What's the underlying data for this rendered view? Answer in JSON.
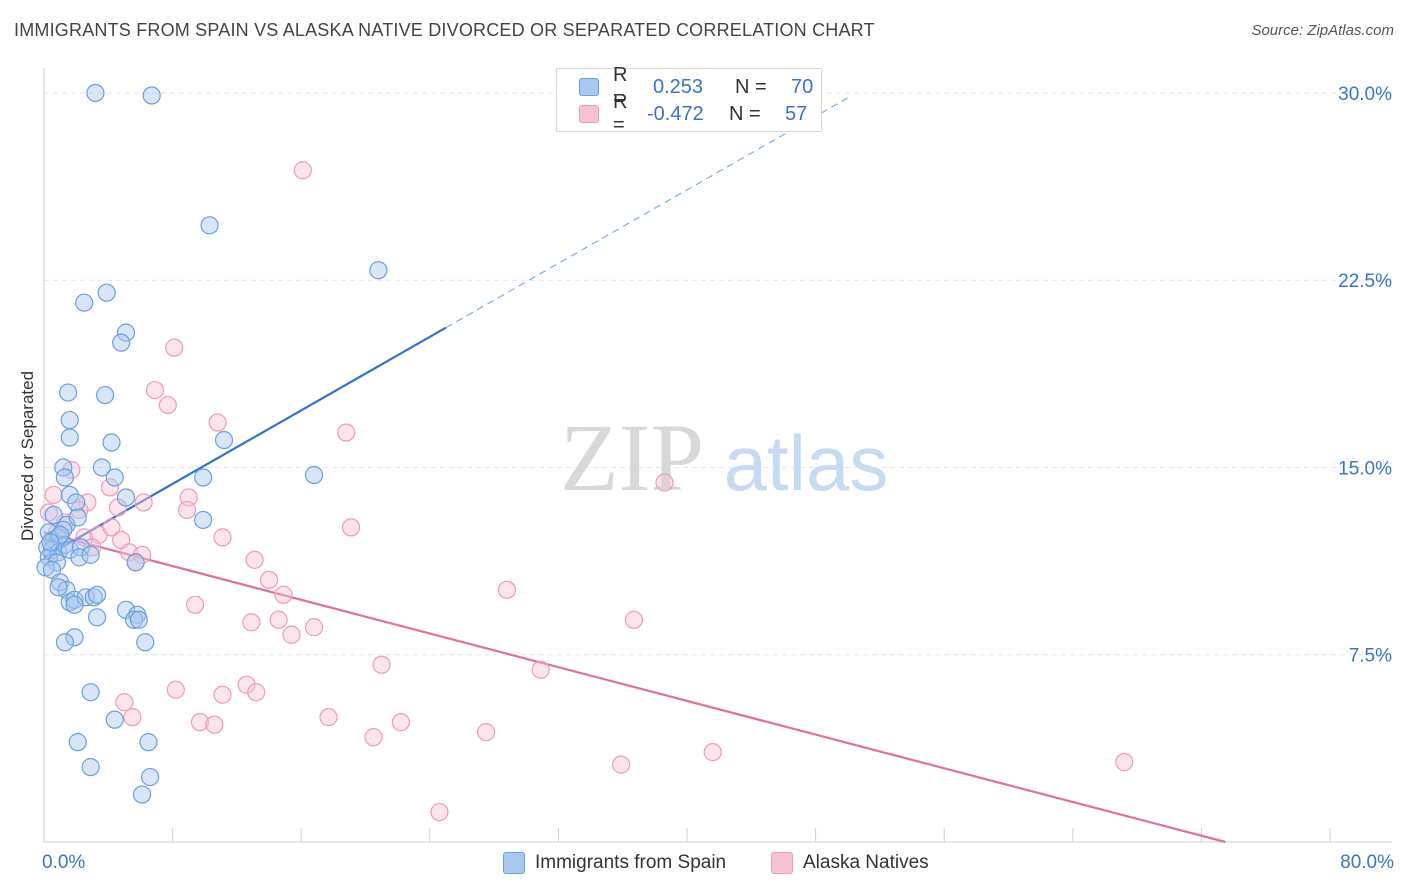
{
  "title": "IMMIGRANTS FROM SPAIN VS ALASKA NATIVE DIVORCED OR SEPARATED CORRELATION CHART",
  "source": "Source: ZipAtlas.com",
  "watermark": {
    "zip": "ZIP",
    "atlas": "atlas"
  },
  "legend": {
    "r_label": "R =",
    "n_label": "N =",
    "series": [
      {
        "name": "Immigrants from Spain",
        "r": "0.253",
        "n": "70"
      },
      {
        "name": "Alaska Natives",
        "r": "-0.472",
        "n": "57"
      }
    ]
  },
  "chart_data": {
    "type": "scatter",
    "title": "IMMIGRANTS FROM SPAIN VS ALASKA NATIVE DIVORCED OR SEPARATED CORRELATION CHART",
    "xlabel": "",
    "ylabel": "Divorced or Separated",
    "xlim": [
      0,
      80
    ],
    "ylim": [
      0,
      31
    ],
    "x_tick_labels": [
      "0.0%",
      "80.0%"
    ],
    "y_ticks": [
      7.5,
      15.0,
      22.5,
      30.0
    ],
    "y_tick_labels": [
      "7.5%",
      "15.0%",
      "22.5%",
      "30.0%"
    ],
    "grid": true,
    "series": [
      {
        "name": "Immigrants from Spain",
        "color": "#6a9fe0",
        "fill": "#a9c8f0",
        "line_color": "#2f74c8",
        "trend": {
          "x1": 0,
          "y1": 11.4,
          "x2": 25,
          "y2": 20.6,
          "x_extend": 50,
          "y_extend": 29.8
        },
        "points": [
          [
            3.2,
            30.0
          ],
          [
            6.7,
            29.9
          ],
          [
            10.3,
            24.7
          ],
          [
            20.8,
            22.9
          ],
          [
            2.5,
            21.6
          ],
          [
            3.9,
            22.0
          ],
          [
            5.1,
            20.4
          ],
          [
            4.8,
            20.0
          ],
          [
            1.5,
            18.0
          ],
          [
            3.8,
            17.9
          ],
          [
            1.6,
            16.9
          ],
          [
            1.6,
            16.2
          ],
          [
            4.2,
            16.0
          ],
          [
            11.2,
            16.1
          ],
          [
            1.2,
            15.0
          ],
          [
            1.3,
            14.6
          ],
          [
            3.6,
            15.0
          ],
          [
            4.4,
            14.6
          ],
          [
            9.9,
            14.6
          ],
          [
            16.8,
            14.7
          ],
          [
            1.6,
            13.9
          ],
          [
            2.0,
            13.6
          ],
          [
            5.1,
            13.8
          ],
          [
            0.6,
            13.1
          ],
          [
            1.4,
            12.7
          ],
          [
            2.1,
            13.0
          ],
          [
            9.9,
            12.9
          ],
          [
            0.3,
            12.4
          ],
          [
            0.6,
            12.1
          ],
          [
            0.9,
            12.2
          ],
          [
            1.2,
            12.5
          ],
          [
            0.2,
            11.8
          ],
          [
            0.5,
            11.7
          ],
          [
            0.9,
            11.6
          ],
          [
            1.3,
            11.9
          ],
          [
            0.3,
            11.4
          ],
          [
            0.8,
            11.2
          ],
          [
            1.6,
            11.7
          ],
          [
            2.3,
            11.8
          ],
          [
            0.1,
            11.0
          ],
          [
            0.5,
            10.9
          ],
          [
            2.2,
            11.4
          ],
          [
            2.9,
            11.5
          ],
          [
            5.7,
            11.2
          ],
          [
            1.0,
            10.4
          ],
          [
            1.4,
            10.1
          ],
          [
            0.9,
            10.2
          ],
          [
            1.6,
            9.6
          ],
          [
            1.9,
            9.7
          ],
          [
            2.6,
            9.8
          ],
          [
            3.1,
            9.8
          ],
          [
            3.3,
            9.9
          ],
          [
            1.9,
            9.5
          ],
          [
            5.1,
            9.3
          ],
          [
            5.8,
            9.1
          ],
          [
            3.3,
            9.0
          ],
          [
            5.6,
            8.9
          ],
          [
            5.9,
            8.9
          ],
          [
            1.9,
            8.2
          ],
          [
            1.3,
            8.0
          ],
          [
            6.3,
            8.0
          ],
          [
            2.9,
            6.0
          ],
          [
            4.4,
            4.9
          ],
          [
            2.1,
            4.0
          ],
          [
            6.5,
            4.0
          ],
          [
            2.9,
            3.0
          ],
          [
            6.6,
            2.6
          ],
          [
            6.1,
            1.9
          ],
          [
            1.0,
            12.3
          ],
          [
            0.4,
            12.0
          ]
        ]
      },
      {
        "name": "Alaska Natives",
        "color": "#f09ab5",
        "fill": "#f7c3d3",
        "line_color": "#e0709a",
        "trend": {
          "x1": 0,
          "y1": 12.4,
          "x2": 73.5,
          "y2": 0
        },
        "points": [
          [
            16.1,
            26.9
          ],
          [
            8.1,
            19.8
          ],
          [
            6.9,
            18.1
          ],
          [
            7.7,
            17.5
          ],
          [
            10.8,
            16.8
          ],
          [
            18.8,
            16.4
          ],
          [
            1.7,
            14.9
          ],
          [
            4.1,
            14.2
          ],
          [
            0.6,
            13.9
          ],
          [
            2.7,
            13.6
          ],
          [
            9.0,
            13.8
          ],
          [
            4.6,
            13.4
          ],
          [
            6.2,
            13.6
          ],
          [
            0.3,
            13.2
          ],
          [
            1.3,
            12.8
          ],
          [
            2.2,
            13.3
          ],
          [
            8.9,
            13.3
          ],
          [
            38.6,
            14.4
          ],
          [
            19.1,
            12.6
          ],
          [
            0.8,
            12.4
          ],
          [
            2.5,
            12.2
          ],
          [
            3.4,
            12.3
          ],
          [
            4.2,
            12.6
          ],
          [
            11.1,
            12.2
          ],
          [
            4.8,
            12.1
          ],
          [
            3.0,
            11.8
          ],
          [
            5.3,
            11.6
          ],
          [
            6.1,
            11.5
          ],
          [
            5.7,
            11.2
          ],
          [
            13.1,
            11.3
          ],
          [
            14.0,
            10.5
          ],
          [
            14.9,
            9.9
          ],
          [
            9.4,
            9.5
          ],
          [
            28.8,
            10.1
          ],
          [
            12.9,
            8.8
          ],
          [
            14.6,
            8.9
          ],
          [
            36.7,
            8.9
          ],
          [
            15.4,
            8.3
          ],
          [
            16.8,
            8.6
          ],
          [
            21.0,
            7.1
          ],
          [
            30.9,
            6.9
          ],
          [
            8.2,
            6.1
          ],
          [
            12.6,
            6.3
          ],
          [
            11.1,
            5.9
          ],
          [
            13.2,
            6.0
          ],
          [
            5.0,
            5.6
          ],
          [
            5.5,
            5.0
          ],
          [
            9.7,
            4.8
          ],
          [
            10.6,
            4.7
          ],
          [
            17.7,
            5.0
          ],
          [
            22.2,
            4.8
          ],
          [
            20.5,
            4.2
          ],
          [
            27.5,
            4.4
          ],
          [
            41.6,
            3.6
          ],
          [
            35.9,
            3.1
          ],
          [
            67.2,
            3.2
          ],
          [
            24.6,
            1.2
          ]
        ]
      }
    ]
  }
}
